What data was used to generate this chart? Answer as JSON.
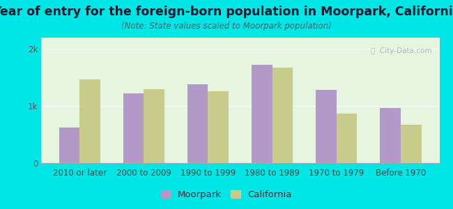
{
  "title": "Year of entry for the foreign-born population in Moorpark, California",
  "subtitle": "(Note: State values scaled to Moorpark population)",
  "categories": [
    "2010 or later",
    "2000 to 2009",
    "1990 to 1999",
    "1980 to 1989",
    "1970 to 1979",
    "Before 1970"
  ],
  "moorpark": [
    620,
    1220,
    1380,
    1720,
    1280,
    960
  ],
  "california": [
    1470,
    1290,
    1260,
    1670,
    870,
    670
  ],
  "moorpark_color": "#b399c8",
  "california_color": "#c8cc8a",
  "background_outer": "#00e5e5",
  "background_inner": "#e5f5e0",
  "bar_width": 0.32,
  "ylim": [
    0,
    2200
  ],
  "yticks": [
    0,
    1000,
    2000
  ],
  "ytick_labels": [
    "0",
    "1k",
    "2k"
  ],
  "title_fontsize": 12.5,
  "subtitle_fontsize": 8.5,
  "tick_fontsize": 8.5,
  "legend_fontsize": 9.5
}
